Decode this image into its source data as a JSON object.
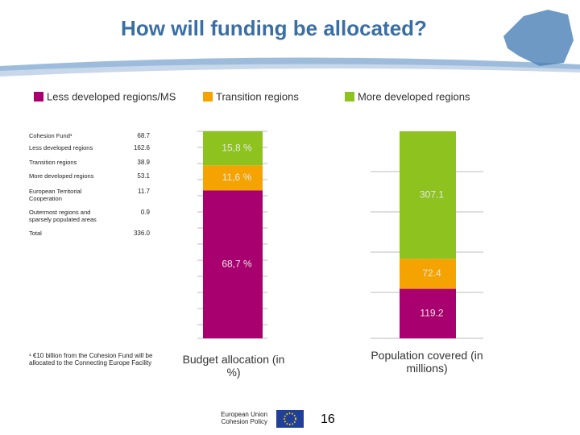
{
  "title": "How will funding be allocated?",
  "table": {
    "rows": [
      [
        "Cohesion Fund¹",
        "68.7"
      ],
      [
        "Less developed regions",
        "162.6"
      ],
      [
        "Transition regions",
        "38.9"
      ],
      [
        "More developed regions",
        "53.1"
      ],
      [
        "European Territorial Cooperation",
        "11.7"
      ],
      [
        "Outermost regions and sparsely populated areas",
        "0.9"
      ],
      [
        "Total",
        "336.0"
      ]
    ]
  },
  "footnote": "¹ €10 billion from the Cohesion Fund will be allocated to the Connecting Europe Facility",
  "chart_data": [
    {
      "type": "stacked_bar",
      "categories": [
        "Budget allocation (in %)"
      ],
      "series": [
        {
          "name": "Less developed regions/MS",
          "color": "#a8006e",
          "values": [
            68.7
          ],
          "value_labels": [
            "68,7 %"
          ]
        },
        {
          "name": "Transition regions",
          "color": "#f5a300",
          "values": [
            11.6
          ],
          "value_labels": [
            "11,6 %"
          ]
        },
        {
          "name": "More developed regions",
          "color": "#8dc21f",
          "values": [
            15.8
          ],
          "value_labels": [
            "15,8 %"
          ]
        }
      ]
    },
    {
      "type": "stacked_bar",
      "categories": [
        "Population covered (in millions)"
      ],
      "series": [
        {
          "color": "#a8006e",
          "values": [
            119.2
          ]
        },
        {
          "color": "#f5a300",
          "values": [
            72.4
          ]
        },
        {
          "color": "#8dc21f",
          "values": [
            307.1
          ]
        }
      ]
    }
  ],
  "footer": {
    "org": "European Union Cohesion Policy",
    "page": "16"
  }
}
